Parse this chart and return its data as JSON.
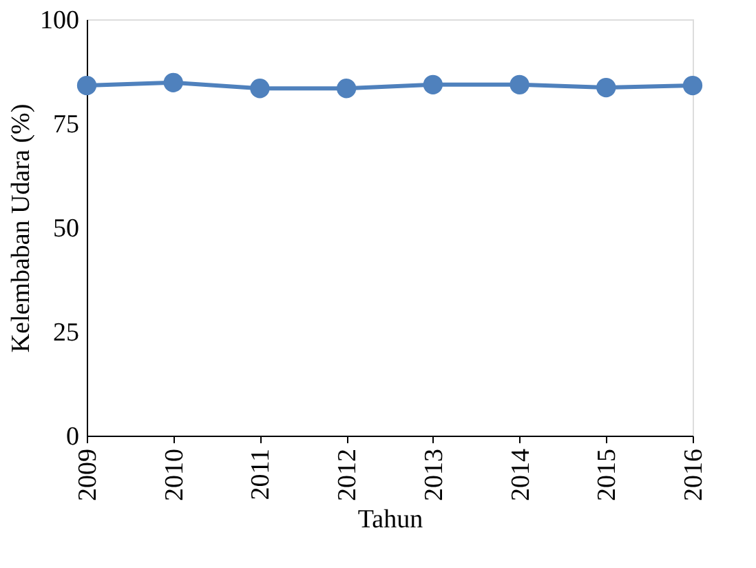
{
  "chart_data": {
    "type": "line",
    "xlabel": "Tahun",
    "ylabel": "Kelembaban Udara (%)",
    "categories": [
      "2009",
      "2010",
      "2011",
      "2012",
      "2013",
      "2014",
      "2015",
      "2016"
    ],
    "series": [
      {
        "color": "#4f81bd",
        "values": [
          84.1,
          84.8,
          83.4,
          83.4,
          84.3,
          84.3,
          83.6,
          84.1
        ]
      }
    ],
    "ylim": [
      0,
      100
    ],
    "yticks": [
      0,
      25,
      50,
      75,
      100
    ],
    "grid": false,
    "legend": false,
    "marker": "circle",
    "line_style": "solid"
  }
}
